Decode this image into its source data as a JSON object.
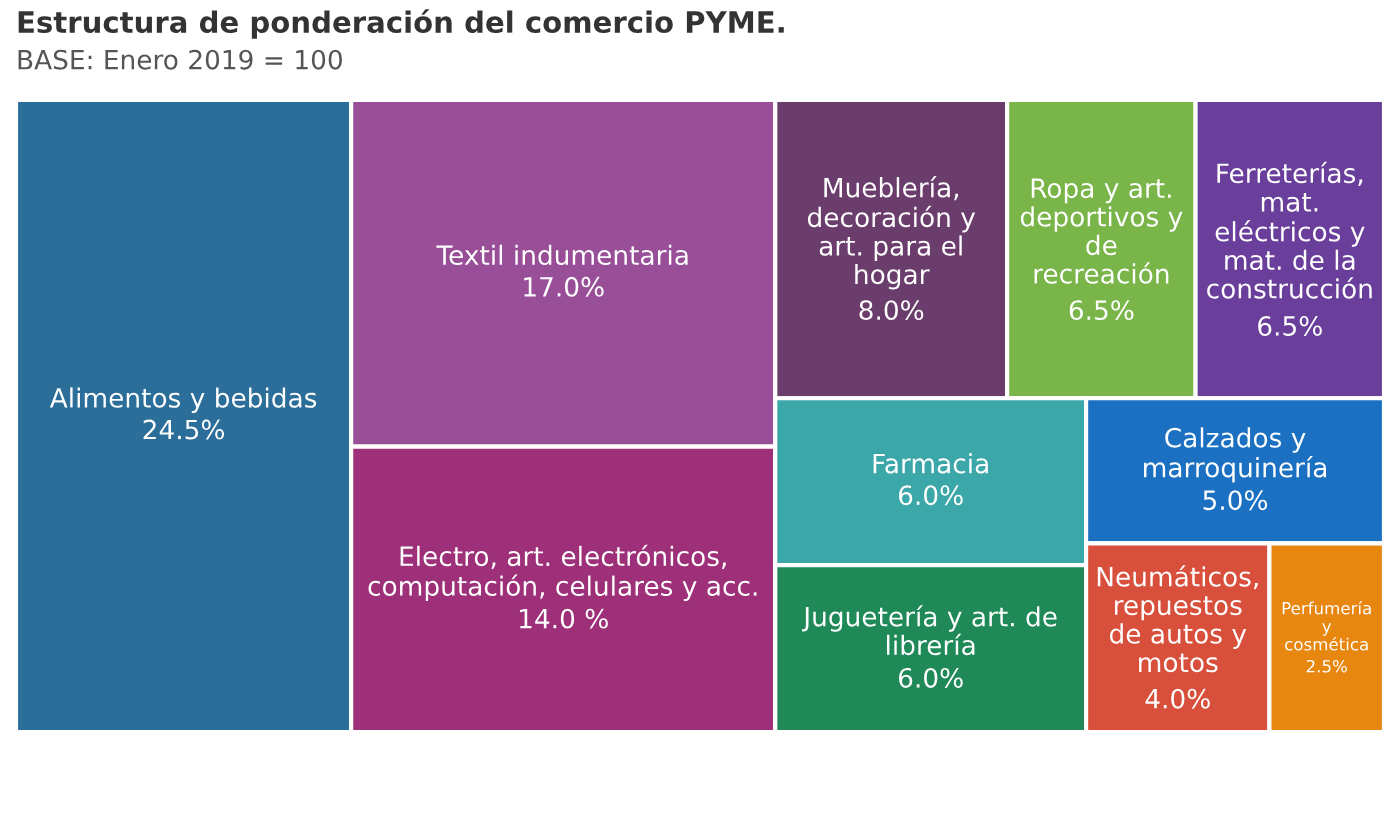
{
  "chart_data": {
    "type": "other",
    "title": "Estructura de ponderación del comercio PYME.",
    "subtitle": "BASE: Enero 2019 = 100",
    "categories": [
      "Alimentos y bebidas",
      "Textil indumentaria",
      "Electro, art. electrónicos, computación, celulares y acc.",
      "Mueblería, decoración y art. para el hogar",
      "Ropa y art. deportivos y de recreación",
      "Ferreterías, mat. eléctricos y mat. de la construcción",
      "Farmacia",
      "Juguetería y art. de librería",
      "Calzados y marroquinería",
      "Neumáticos, repuestos de autos y motos",
      "Perfumería y cosmética"
    ],
    "values": [
      24.5,
      17.0,
      14.0,
      8.0,
      6.5,
      6.5,
      6.0,
      6.0,
      5.0,
      4.0,
      2.5
    ],
    "value_labels": [
      "24.5%",
      "17.0%",
      "14.0 %",
      "8.0%",
      "6.5%",
      "6.5%",
      "6.0%",
      "6.0%",
      "5.0%",
      "4.0%",
      "2.5%"
    ],
    "colors": [
      "#2b6e99",
      "#984f98",
      "#9d3079",
      "#6b3d6c",
      "#79b548",
      "#6a3f9c",
      "#3ba7a8",
      "#1f8a58",
      "#1b70c1",
      "#d8503c",
      "#e8870f"
    ]
  }
}
